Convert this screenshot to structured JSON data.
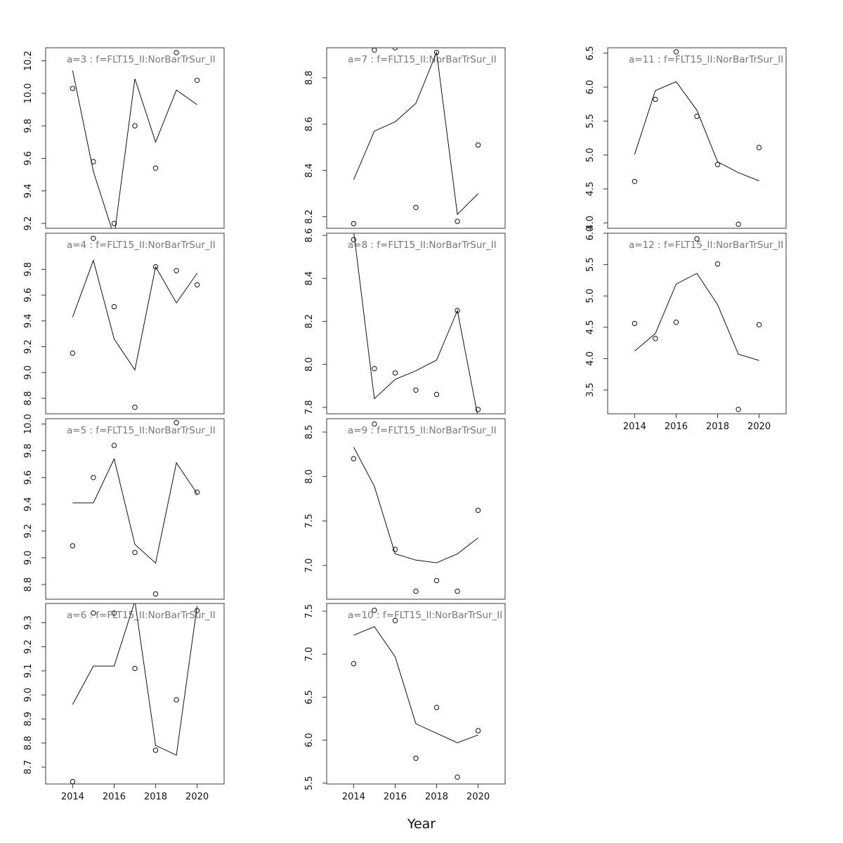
{
  "chart_data": {
    "type": "scatter",
    "xlabel": "Year",
    "panels": [
      {
        "title": "a=3  :  f=FLT15_II:NorBarTrSur_II",
        "x": [
          2014,
          2015,
          2016,
          2017,
          2018,
          2019,
          2020
        ],
        "observed": [
          10.03,
          9.58,
          9.2,
          9.8,
          9.54,
          10.25,
          10.08
        ],
        "fitted": [
          10.14,
          9.52,
          9.12,
          10.09,
          9.7,
          10.02,
          9.93
        ],
        "ylim": [
          9.17,
          10.28
        ],
        "yticks": [
          9.2,
          9.4,
          9.6,
          9.8,
          10.0,
          10.2
        ]
      },
      {
        "title": "a=4  :  f=FLT15_II:NorBarTrSur_II",
        "x": [
          2014,
          2015,
          2016,
          2017,
          2018,
          2019,
          2020
        ],
        "observed": [
          9.15,
          10.04,
          9.51,
          8.73,
          9.82,
          9.79,
          9.68
        ],
        "fitted": [
          9.43,
          9.87,
          9.26,
          9.02,
          9.82,
          9.54,
          9.77
        ],
        "ylim": [
          8.68,
          10.08
        ],
        "yticks": [
          8.8,
          9.0,
          9.2,
          9.4,
          9.6,
          9.8
        ]
      },
      {
        "title": "a=5  :  f=FLT15_II:NorBarTrSur_II",
        "x": [
          2014,
          2015,
          2016,
          2017,
          2018,
          2019,
          2020
        ],
        "observed": [
          9.09,
          9.6,
          9.84,
          9.04,
          8.73,
          10.01,
          9.49
        ],
        "fitted": [
          9.41,
          9.41,
          9.74,
          9.1,
          8.96,
          9.71,
          9.48
        ],
        "ylim": [
          8.69,
          10.04
        ],
        "yticks": [
          8.8,
          9.0,
          9.2,
          9.4,
          9.6,
          9.8,
          10.0
        ]
      },
      {
        "title": "a=6  :  f=FLT15_II:NorBarTrSur_II",
        "x": [
          2014,
          2015,
          2016,
          2017,
          2018,
          2019,
          2020
        ],
        "observed": [
          8.64,
          9.34,
          9.34,
          9.11,
          8.77,
          8.98,
          9.35
        ],
        "fitted": [
          8.96,
          9.12,
          9.12,
          9.39,
          8.79,
          8.75,
          9.37
        ],
        "ylim": [
          8.63,
          9.38
        ],
        "yticks": [
          8.7,
          8.8,
          8.9,
          9.0,
          9.1,
          9.2,
          9.3
        ]
      },
      {
        "title": "a=7  :  f=FLT15_II:NorBarTrSur_II",
        "x": [
          2014,
          2015,
          2016,
          2017,
          2018,
          2019,
          2020
        ],
        "observed": [
          8.17,
          8.92,
          8.93,
          8.24,
          8.91,
          8.18,
          8.51
        ],
        "fitted": [
          8.36,
          8.57,
          8.61,
          8.69,
          8.91,
          8.21,
          8.3
        ],
        "ylim": [
          8.15,
          8.93
        ],
        "yticks": [
          8.2,
          8.4,
          8.6,
          8.8
        ]
      },
      {
        "title": "a=8  :  f=FLT15_II:NorBarTrSur_II",
        "x": [
          2014,
          2015,
          2016,
          2017,
          2018,
          2019,
          2020
        ],
        "observed": [
          8.58,
          7.98,
          7.96,
          7.88,
          7.86,
          8.25,
          7.79
        ],
        "fitted": [
          8.62,
          7.84,
          7.93,
          7.97,
          8.02,
          8.25,
          7.75
        ],
        "ylim": [
          7.77,
          8.61
        ],
        "yticks": [
          7.8,
          8.0,
          8.2,
          8.4,
          8.6
        ]
      },
      {
        "title": "a=9  :  f=FLT15_II:NorBarTrSur_II",
        "x": [
          2014,
          2015,
          2016,
          2017,
          2018,
          2019,
          2020
        ],
        "observed": [
          8.2,
          8.59,
          7.18,
          6.71,
          6.83,
          6.71,
          7.62
        ],
        "fitted": [
          8.33,
          7.89,
          7.13,
          7.06,
          7.03,
          7.13,
          7.31
        ],
        "ylim": [
          6.62,
          8.65
        ],
        "yticks": [
          7.0,
          7.5,
          8.0,
          8.5
        ]
      },
      {
        "title": "a=10  :  f=FLT15_II:NorBarTrSur_II",
        "x": [
          2014,
          2015,
          2016,
          2017,
          2018,
          2019,
          2020
        ],
        "observed": [
          6.89,
          7.51,
          7.39,
          5.79,
          6.38,
          5.57,
          6.11
        ],
        "fitted": [
          7.22,
          7.32,
          6.97,
          6.19,
          6.08,
          5.97,
          6.06
        ],
        "ylim": [
          5.49,
          7.59
        ],
        "yticks": [
          5.5,
          6.0,
          6.5,
          7.0,
          7.5
        ]
      },
      {
        "title": "a=11  :  f=FLT15_II:NorBarTrSur_II",
        "x": [
          2014,
          2015,
          2016,
          2017,
          2018,
          2019,
          2020
        ],
        "observed": [
          4.61,
          5.82,
          6.52,
          5.57,
          4.86,
          3.98,
          5.11
        ],
        "fitted": [
          5.01,
          5.95,
          6.08,
          5.66,
          4.9,
          4.74,
          4.62
        ],
        "ylim": [
          3.92,
          6.58
        ],
        "yticks": [
          4.0,
          4.5,
          5.0,
          5.5,
          6.0,
          6.5
        ]
      },
      {
        "title": "a=12  :  f=FLT15_II:NorBarTrSur_II",
        "x": [
          2014,
          2015,
          2016,
          2017,
          2018,
          2019,
          2020
        ],
        "observed": [
          4.56,
          4.32,
          4.58,
          5.91,
          5.51,
          3.19,
          4.54
        ],
        "fitted": [
          4.12,
          4.4,
          5.19,
          5.36,
          4.86,
          4.07,
          3.97
        ],
        "ylim": [
          3.12,
          6.0
        ],
        "yticks": [
          3.5,
          4.0,
          4.5,
          5.0,
          5.5,
          6.0
        ]
      }
    ],
    "xticks": [
      2014,
      2016,
      2018,
      2020
    ],
    "xlim": [
      2012.7,
      2021.3
    ],
    "grid": false,
    "legend": "none"
  }
}
